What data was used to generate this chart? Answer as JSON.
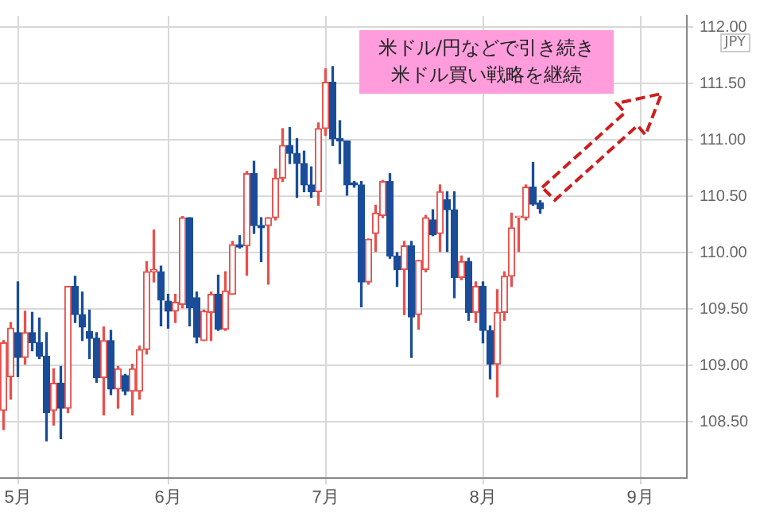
{
  "chart_data": {
    "type": "candlestick",
    "ylabel": "JPY",
    "annotations": [
      "米ドル/円などで引き続き",
      "米ドル買い戦略を継続"
    ],
    "categories": [
      null,
      null,
      "5月",
      null,
      null,
      null,
      null,
      null,
      null,
      null,
      null,
      null,
      null,
      null,
      null,
      null,
      null,
      null,
      null,
      null,
      null,
      null,
      null,
      "6月",
      null,
      null,
      null,
      null,
      null,
      null,
      null,
      null,
      null,
      null,
      null,
      null,
      null,
      null,
      null,
      null,
      null,
      null,
      null,
      null,
      null,
      "7月",
      null,
      null,
      null,
      null,
      null,
      null,
      null,
      null,
      null,
      null,
      null,
      null,
      null,
      null,
      null,
      null,
      null,
      null,
      null,
      null,
      null,
      "8月",
      null,
      null,
      null,
      null,
      null,
      null,
      null,
      null,
      null,
      null,
      null,
      null,
      null,
      null,
      null,
      null,
      null,
      null,
      null,
      null,
      null,
      "9月",
      null,
      null,
      null,
      null,
      null,
      null
    ],
    "ohlc": [
      [
        108.6,
        109.22,
        108.43,
        109.2
      ],
      [
        108.9,
        109.38,
        108.7,
        109.33
      ],
      [
        109.29,
        109.74,
        108.9,
        109.07
      ],
      [
        109.07,
        109.48,
        109.01,
        109.29
      ],
      [
        109.29,
        109.47,
        109.13,
        109.2
      ],
      [
        109.2,
        109.42,
        109.06,
        109.08
      ],
      [
        109.08,
        109.29,
        108.33,
        108.58
      ],
      [
        108.6,
        108.97,
        108.47,
        108.84
      ],
      [
        108.84,
        108.99,
        108.35,
        108.62
      ],
      [
        108.62,
        109.7,
        108.58,
        109.7
      ],
      [
        109.7,
        109.79,
        109.38,
        109.45
      ],
      [
        109.45,
        109.65,
        109.22,
        109.34
      ],
      [
        109.3,
        109.49,
        109.06,
        109.24
      ],
      [
        109.24,
        109.29,
        108.85,
        108.89
      ],
      [
        108.89,
        109.34,
        108.56,
        109.22
      ],
      [
        109.22,
        109.31,
        108.74,
        108.79
      ],
      [
        108.79,
        108.99,
        108.62,
        108.97
      ],
      [
        108.91,
        108.92,
        108.74,
        108.77
      ],
      [
        108.77,
        109.01,
        108.56,
        108.97
      ],
      [
        108.77,
        109.17,
        108.7,
        109.14
      ],
      [
        109.14,
        109.92,
        109.1,
        109.83
      ],
      [
        109.83,
        110.2,
        109.74,
        109.85
      ],
      [
        109.83,
        109.88,
        109.35,
        109.58
      ],
      [
        109.57,
        109.63,
        109.33,
        109.48
      ],
      [
        109.48,
        109.63,
        109.38,
        109.56
      ],
      [
        109.54,
        110.32,
        109.51,
        110.31
      ],
      [
        110.31,
        110.31,
        109.35,
        109.51
      ],
      [
        109.6,
        109.65,
        109.2,
        109.25
      ],
      [
        109.22,
        109.49,
        109.22,
        109.48
      ],
      [
        109.47,
        109.65,
        109.22,
        109.63
      ],
      [
        109.63,
        109.8,
        109.31,
        109.32
      ],
      [
        109.32,
        109.83,
        109.31,
        109.66
      ],
      [
        109.63,
        110.1,
        109.63,
        110.07
      ],
      [
        110.07,
        110.15,
        110.04,
        110.05
      ],
      [
        110.06,
        110.72,
        109.8,
        110.7
      ],
      [
        110.7,
        110.81,
        110.17,
        110.24
      ],
      [
        110.24,
        110.31,
        109.92,
        110.22
      ],
      [
        110.24,
        110.31,
        109.72,
        110.31
      ],
      [
        110.31,
        110.74,
        110.29,
        110.66
      ],
      [
        110.66,
        111.1,
        110.63,
        110.95
      ],
      [
        110.95,
        111.11,
        110.79,
        110.88
      ],
      [
        110.88,
        111.01,
        110.49,
        110.79
      ],
      [
        110.79,
        110.9,
        110.54,
        110.6
      ],
      [
        110.6,
        110.76,
        110.49,
        110.54
      ],
      [
        110.54,
        111.15,
        110.42,
        111.1
      ],
      [
        111.1,
        111.63,
        111.04,
        111.51
      ],
      [
        111.51,
        111.65,
        110.95,
        111.01
      ],
      [
        111.01,
        111.17,
        110.79,
        110.99
      ],
      [
        110.99,
        110.99,
        110.51,
        110.6
      ],
      [
        110.62,
        110.63,
        110.58,
        110.6
      ],
      [
        110.6,
        110.63,
        109.52,
        109.74
      ],
      [
        109.74,
        110.12,
        109.72,
        110.12
      ],
      [
        110.17,
        110.42,
        110.01,
        110.35
      ],
      [
        110.33,
        110.64,
        110.31,
        110.63
      ],
      [
        110.63,
        110.7,
        109.95,
        109.97
      ],
      [
        109.97,
        110.0,
        109.7,
        109.85
      ],
      [
        109.85,
        110.1,
        109.45,
        110.06
      ],
      [
        110.06,
        110.1,
        109.07,
        109.43
      ],
      [
        109.45,
        109.93,
        109.32,
        109.93
      ],
      [
        109.85,
        110.33,
        109.83,
        110.31
      ],
      [
        110.29,
        110.38,
        110.15,
        110.16
      ],
      [
        110.17,
        110.6,
        110.01,
        110.54
      ],
      [
        110.47,
        110.54,
        110.01,
        110.38
      ],
      [
        110.38,
        110.54,
        109.6,
        109.78
      ],
      [
        109.78,
        109.97,
        109.76,
        109.92
      ],
      [
        109.92,
        109.95,
        109.4,
        109.47
      ],
      [
        109.47,
        109.74,
        109.38,
        109.7
      ],
      [
        109.7,
        109.74,
        109.2,
        109.31
      ],
      [
        109.31,
        109.35,
        108.88,
        109.01
      ],
      [
        109.01,
        109.67,
        108.72,
        109.47
      ],
      [
        109.47,
        109.83,
        109.4,
        109.79
      ],
      [
        109.79,
        110.35,
        109.7,
        110.22
      ],
      [
        110.31,
        110.32,
        110.01,
        110.32
      ],
      [
        110.31,
        110.6,
        110.29,
        110.58
      ],
      [
        110.58,
        110.8,
        110.42,
        110.43
      ],
      [
        110.44,
        110.46,
        110.35,
        110.39
      ],
      null,
      null,
      null,
      null,
      null,
      null,
      null,
      null,
      null,
      null,
      null,
      null,
      null,
      null,
      null,
      null,
      null,
      null,
      null,
      null
    ],
    "colors": [
      "#e8504c",
      "#e8504c",
      "#1a4d99",
      "#e8504c",
      "#1a4d99",
      "#1a4d99",
      "#1a4d99",
      "#e8504c",
      "#1a4d99",
      "#e8504c",
      "#1a4d99",
      "#1a4d99",
      "#1a4d99",
      "#1a4d99",
      "#e8504c",
      "#1a4d99",
      "#e8504c",
      "#1a4d99",
      "#e8504c",
      "#e8504c",
      "#e8504c",
      "#e8504c",
      "#1a4d99",
      "#1a4d99",
      "#e8504c",
      "#e8504c",
      "#1a4d99",
      "#1a4d99",
      "#e8504c",
      "#e8504c",
      "#1a4d99",
      "#e8504c",
      "#e8504c",
      "#1a4d99",
      "#e8504c",
      "#1a4d99",
      "#1a4d99",
      "#e8504c",
      "#e8504c",
      "#e8504c",
      "#1a4d99",
      "#1a4d99",
      "#1a4d99",
      "#1a4d99",
      "#e8504c",
      "#e8504c",
      "#1a4d99",
      "#1a4d99",
      "#1a4d99",
      "#1a4d99",
      "#1a4d99",
      "#e8504c",
      "#e8504c",
      "#e8504c",
      "#1a4d99",
      "#1a4d99",
      "#e8504c",
      "#1a4d99",
      "#e8504c",
      "#e8504c",
      "#1a4d99",
      "#e8504c",
      "#1a4d99",
      "#1a4d99",
      "#e8504c",
      "#1a4d99",
      "#e8504c",
      "#1a4d99",
      "#1a4d99",
      "#e8504c",
      "#e8504c",
      "#e8504c",
      "#e8504c",
      "#e8504c",
      "#1a4d99",
      "#1a4d99",
      null,
      null,
      null,
      null,
      null,
      null,
      null,
      null,
      null,
      null,
      null,
      null,
      null,
      null,
      null,
      null,
      null,
      null,
      null,
      null
    ],
    "ylim": [
      108.0,
      112.1
    ],
    "yticks": [
      {
        "value": 108.5,
        "label": "108.50"
      },
      {
        "value": 109,
        "label": "109.00"
      },
      {
        "value": 109.5,
        "label": "109.50"
      },
      {
        "value": 110,
        "label": "110.00"
      },
      {
        "value": 110.5,
        "label": "110.50"
      },
      {
        "value": 111,
        "label": "111.00"
      },
      {
        "value": 111.5,
        "label": "111.50"
      },
      {
        "value": 112,
        "label": "112.00"
      }
    ],
    "grid": true,
    "legend": false
  }
}
